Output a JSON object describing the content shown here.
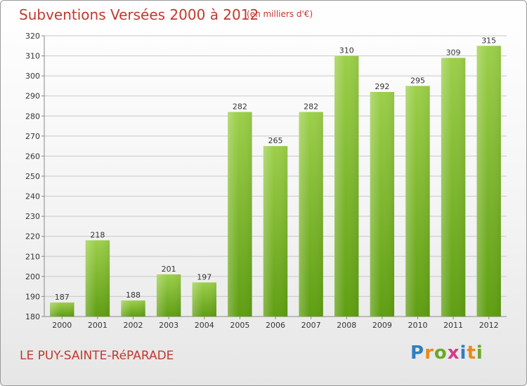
{
  "chart_data": {
    "type": "bar",
    "title": "Subventions Versées 2000 à 2012",
    "subtitle": "(en milliers d'€)",
    "categories": [
      "2000",
      "2001",
      "2002",
      "2003",
      "2004",
      "2005",
      "2006",
      "2007",
      "2008",
      "2009",
      "2010",
      "2011",
      "2012"
    ],
    "values": [
      187,
      218,
      188,
      201,
      197,
      282,
      265,
      282,
      310,
      292,
      295,
      309,
      315
    ],
    "ylim": [
      180,
      320
    ],
    "yticks": [
      180,
      190,
      200,
      210,
      220,
      230,
      240,
      250,
      260,
      270,
      280,
      290,
      300,
      310,
      320
    ],
    "grid": true,
    "colors": {
      "bar_light": "#9ccf4a",
      "bar_dark": "#5f9e12",
      "grid": "#c8c8c8",
      "text": "#333333",
      "title": "#c0392b"
    }
  },
  "footer": {
    "commune": "LE PUY-SAINTE-RéPARADE",
    "logo": "Proxiti"
  }
}
